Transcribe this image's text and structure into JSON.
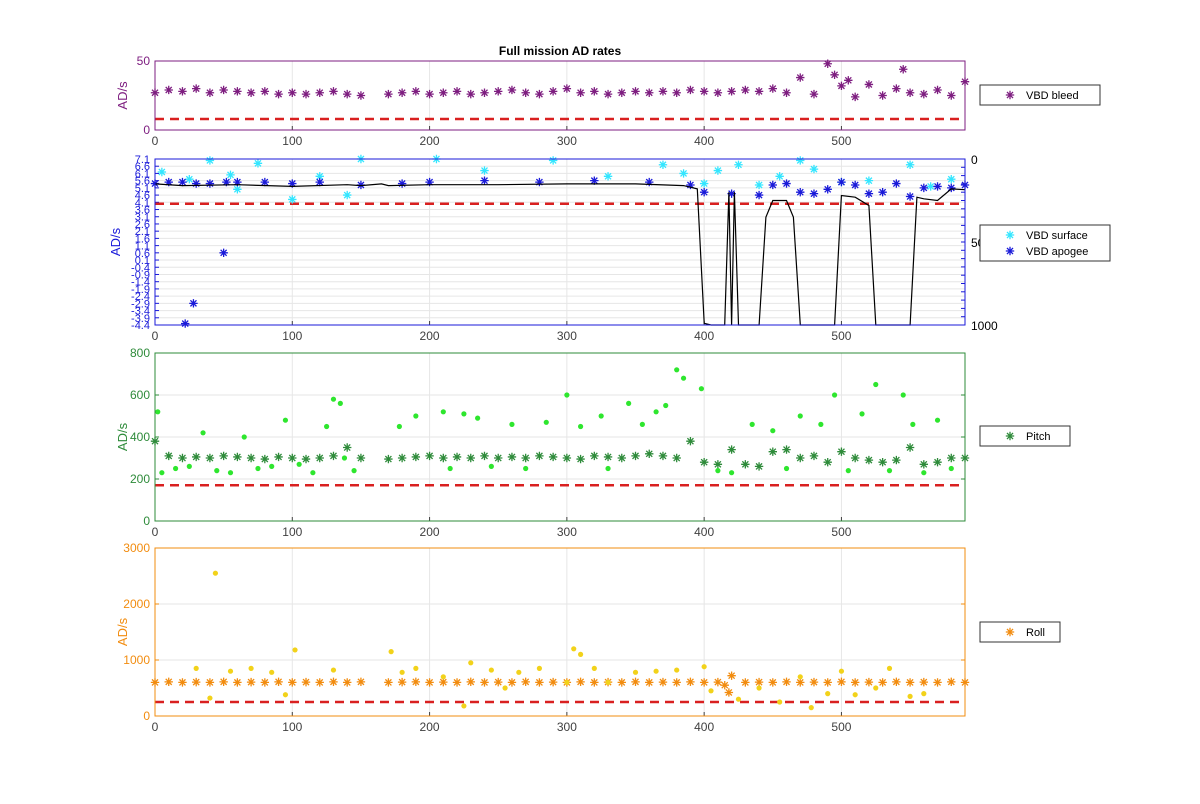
{
  "figure": {
    "title": "Full mission AD rates"
  },
  "colors": {
    "bleed": "#7E1E80",
    "surface": "#33E6FF",
    "apogee": "#1A1AD9",
    "depth": "#000000",
    "pitch_dark": "#2E8B3A",
    "pitch_light": "#2EE62E",
    "roll": "#F28C0F",
    "roll_light": "#F2D21A",
    "threshold": "#D92020",
    "grid": "#E6E6E6",
    "axis": "#404040"
  },
  "chart_data": [
    {
      "id": "bleed",
      "type": "scatter",
      "ylabel": "AD/s",
      "axis_color": "#7E1E80",
      "xlim": [
        0,
        590
      ],
      "ylim": [
        0,
        50
      ],
      "xticks": [
        0,
        100,
        200,
        300,
        400,
        500
      ],
      "yticks": [
        0,
        50
      ],
      "threshold": 8,
      "legend": {
        "placement": "right",
        "entries": [
          {
            "label": "VBD bleed",
            "color": "#7E1E80"
          }
        ]
      },
      "series": [
        {
          "name": "VBD bleed",
          "color": "#7E1E80",
          "marker": "star",
          "x": [
            0,
            10,
            20,
            30,
            40,
            50,
            60,
            70,
            80,
            90,
            100,
            110,
            120,
            130,
            140,
            150,
            170,
            180,
            190,
            200,
            210,
            220,
            230,
            240,
            250,
            260,
            270,
            280,
            290,
            300,
            310,
            320,
            330,
            340,
            350,
            360,
            370,
            380,
            390,
            400,
            410,
            420,
            430,
            440,
            450,
            460,
            470,
            480,
            490,
            495,
            500,
            505,
            510,
            520,
            530,
            540,
            545,
            550,
            560,
            570,
            580,
            590
          ],
          "y": [
            27,
            29,
            28,
            30,
            27,
            29,
            28,
            27,
            28,
            26,
            27,
            26,
            27,
            28,
            26,
            25,
            26,
            27,
            28,
            26,
            27,
            28,
            26,
            27,
            28,
            29,
            27,
            26,
            28,
            30,
            27,
            28,
            26,
            27,
            28,
            27,
            28,
            27,
            29,
            28,
            27,
            28,
            29,
            28,
            30,
            27,
            38,
            26,
            48,
            40,
            32,
            36,
            24,
            33,
            25,
            30,
            44,
            27,
            26,
            29,
            25,
            35
          ]
        }
      ]
    },
    {
      "id": "vbd",
      "type": "scatter",
      "ylabel": "AD/s",
      "axis_color": "#1A1AD9",
      "xlim": [
        0,
        590
      ],
      "ylim": [
        -4.4,
        7.1
      ],
      "xticks": [
        0,
        100,
        200,
        300,
        400,
        500
      ],
      "yticks": [
        -4.4,
        -3.9,
        -3.4,
        -2.9,
        -2.4,
        -1.9,
        -1.4,
        -0.9,
        -0.4,
        0.1,
        0.6,
        1.1,
        1.6,
        2.1,
        2.6,
        3.1,
        3.6,
        4.1,
        4.6,
        5.1,
        5.6,
        6.1,
        6.6,
        7.1
      ],
      "y2lim": [
        0,
        1000
      ],
      "y2ticks": [
        0,
        500,
        1000
      ],
      "threshold": 4.0,
      "legend": {
        "placement": "right",
        "entries": [
          {
            "label": "VBD surface",
            "color": "#33E6FF"
          },
          {
            "label": "VBD apogee",
            "color": "#1A1AD9"
          }
        ]
      },
      "series": [
        {
          "name": "VBD surface",
          "color": "#33E6FF",
          "marker": "star",
          "x": [
            5,
            25,
            40,
            55,
            60,
            75,
            100,
            120,
            140,
            150,
            205,
            240,
            290,
            330,
            370,
            385,
            400,
            410,
            425,
            440,
            455,
            470,
            480,
            500,
            520,
            550,
            565,
            580
          ],
          "y": [
            6.2,
            5.7,
            7.0,
            6.0,
            5.0,
            6.8,
            4.3,
            5.9,
            4.6,
            7.1,
            7.1,
            6.3,
            7.0,
            5.9,
            6.7,
            6.1,
            5.4,
            6.3,
            6.7,
            5.3,
            5.9,
            7.0,
            6.4,
            5.5,
            5.6,
            6.7,
            5.2,
            5.7
          ]
        },
        {
          "name": "VBD apogee",
          "color": "#1A1AD9",
          "marker": "star",
          "x": [
            0,
            10,
            20,
            22,
            28,
            30,
            40,
            50,
            52,
            60,
            80,
            100,
            120,
            150,
            180,
            200,
            240,
            280,
            320,
            360,
            390,
            400,
            420,
            440,
            450,
            460,
            470,
            480,
            490,
            500,
            510,
            520,
            530,
            540,
            550,
            560,
            570,
            580,
            590
          ],
          "y": [
            5.4,
            5.5,
            5.5,
            -4.3,
            -2.9,
            5.4,
            5.4,
            0.6,
            5.5,
            5.5,
            5.5,
            5.4,
            5.5,
            5.3,
            5.4,
            5.5,
            5.6,
            5.5,
            5.6,
            5.5,
            5.3,
            4.8,
            4.7,
            4.6,
            5.3,
            5.4,
            4.8,
            4.7,
            5.0,
            5.5,
            5.3,
            4.7,
            4.8,
            5.4,
            4.5,
            5.1,
            5.2,
            5.1,
            5.3
          ]
        },
        {
          "name": "",
          "color": "#000000",
          "marker": "line",
          "x": [
            0,
            20,
            60,
            100,
            140,
            150,
            165,
            170,
            200,
            250,
            300,
            350,
            385,
            395,
            400,
            405,
            415,
            418,
            420,
            422,
            425,
            430,
            440,
            445,
            450,
            460,
            465,
            470,
            480,
            495,
            500,
            510,
            520,
            525,
            530,
            540,
            550,
            555,
            560,
            570,
            580,
            590
          ],
          "y": [
            150,
            160,
            155,
            165,
            155,
            160,
            150,
            160,
            155,
            155,
            150,
            150,
            160,
            180,
            990,
            1000,
            1000,
            200,
            1000,
            200,
            1000,
            1000,
            1000,
            350,
            250,
            250,
            350,
            1000,
            1000,
            1000,
            220,
            230,
            280,
            1000,
            1000,
            1000,
            1000,
            230,
            240,
            250,
            180,
            185
          ]
        }
      ]
    },
    {
      "id": "pitch",
      "type": "scatter",
      "ylabel": "AD/s",
      "axis_color": "#2E8B3A",
      "xlim": [
        0,
        590
      ],
      "ylim": [
        0,
        800
      ],
      "xticks": [
        0,
        100,
        200,
        300,
        400,
        500
      ],
      "yticks": [
        0,
        200,
        400,
        600,
        800
      ],
      "threshold": 170,
      "legend": {
        "placement": "right",
        "entries": [
          {
            "label": "Pitch",
            "color": "#2E8B3A"
          }
        ]
      },
      "series": [
        {
          "name": "Pitch",
          "color": "#2E8B3A",
          "marker": "star",
          "x": [
            0,
            10,
            20,
            30,
            40,
            50,
            60,
            70,
            80,
            90,
            100,
            110,
            120,
            130,
            140,
            150,
            170,
            180,
            190,
            200,
            210,
            220,
            230,
            240,
            250,
            260,
            270,
            280,
            290,
            300,
            310,
            320,
            330,
            340,
            350,
            360,
            370,
            380,
            390,
            400,
            410,
            420,
            430,
            440,
            450,
            460,
            470,
            480,
            490,
            500,
            510,
            520,
            530,
            540,
            550,
            560,
            570,
            580,
            590
          ],
          "y": [
            380,
            310,
            300,
            305,
            300,
            310,
            305,
            300,
            295,
            305,
            300,
            295,
            300,
            310,
            350,
            300,
            295,
            300,
            305,
            310,
            300,
            305,
            300,
            310,
            300,
            305,
            300,
            310,
            305,
            300,
            295,
            310,
            305,
            300,
            310,
            320,
            310,
            300,
            380,
            280,
            270,
            340,
            270,
            260,
            330,
            340,
            300,
            310,
            280,
            330,
            300,
            290,
            280,
            290,
            350,
            270,
            280,
            300,
            300
          ]
        },
        {
          "name": "",
          "color": "#2EE62E",
          "marker": "dot",
          "x": [
            2,
            5,
            15,
            25,
            35,
            45,
            55,
            65,
            75,
            85,
            95,
            105,
            115,
            125,
            130,
            135,
            138,
            145,
            178,
            190,
            210,
            215,
            225,
            235,
            245,
            260,
            270,
            285,
            300,
            310,
            325,
            330,
            345,
            355,
            365,
            372,
            380,
            385,
            398,
            410,
            420,
            435,
            450,
            460,
            470,
            485,
            495,
            505,
            515,
            525,
            535,
            545,
            552,
            560,
            570,
            580
          ],
          "y": [
            520,
            230,
            250,
            260,
            420,
            240,
            230,
            400,
            250,
            260,
            480,
            270,
            230,
            450,
            580,
            560,
            300,
            240,
            450,
            500,
            520,
            250,
            510,
            490,
            260,
            460,
            250,
            470,
            600,
            450,
            500,
            250,
            560,
            460,
            520,
            550,
            720,
            680,
            630,
            240,
            230,
            460,
            430,
            250,
            500,
            460,
            600,
            240,
            510,
            650,
            240,
            600,
            460,
            230,
            480,
            250
          ]
        }
      ]
    },
    {
      "id": "roll",
      "type": "scatter",
      "ylabel": "AD/s",
      "axis_color": "#F28C0F",
      "xlim": [
        0,
        590
      ],
      "ylim": [
        0,
        3000
      ],
      "xticks": [
        0,
        100,
        200,
        300,
        400,
        500
      ],
      "yticks": [
        0,
        1000,
        2000,
        3000
      ],
      "threshold": 250,
      "legend": {
        "placement": "right",
        "entries": [
          {
            "label": "Roll",
            "color": "#F28C0F"
          }
        ]
      },
      "series": [
        {
          "name": "Roll",
          "color": "#F28C0F",
          "marker": "star",
          "x": [
            0,
            10,
            20,
            30,
            40,
            50,
            60,
            70,
            80,
            90,
            100,
            110,
            120,
            130,
            140,
            150,
            170,
            180,
            190,
            200,
            210,
            220,
            230,
            240,
            250,
            260,
            270,
            280,
            290,
            300,
            310,
            320,
            330,
            340,
            350,
            360,
            370,
            380,
            390,
            400,
            410,
            415,
            418,
            420,
            430,
            440,
            450,
            460,
            470,
            480,
            490,
            500,
            510,
            520,
            530,
            540,
            550,
            560,
            570,
            580,
            590
          ],
          "y": [
            600,
            610,
            600,
            605,
            600,
            610,
            600,
            605,
            600,
            610,
            600,
            605,
            600,
            610,
            600,
            610,
            600,
            605,
            610,
            600,
            605,
            600,
            610,
            600,
            605,
            600,
            610,
            600,
            605,
            600,
            610,
            600,
            605,
            600,
            610,
            600,
            605,
            600,
            610,
            600,
            605,
            550,
            420,
            720,
            600,
            605,
            600,
            610,
            600,
            605,
            600,
            610,
            600,
            605,
            600,
            610,
            600,
            605,
            600,
            610,
            600
          ]
        },
        {
          "name": "",
          "color": "#F2D21A",
          "marker": "dot",
          "x": [
            30,
            40,
            44,
            55,
            70,
            85,
            95,
            102,
            130,
            172,
            180,
            190,
            210,
            225,
            230,
            245,
            255,
            265,
            280,
            300,
            305,
            310,
            320,
            330,
            350,
            365,
            380,
            400,
            405,
            425,
            440,
            455,
            470,
            478,
            490,
            500,
            510,
            525,
            535,
            550,
            560
          ],
          "y": [
            850,
            320,
            2550,
            800,
            850,
            780,
            380,
            1180,
            820,
            1150,
            780,
            850,
            700,
            180,
            950,
            820,
            500,
            780,
            850,
            600,
            1200,
            1100,
            850,
            600,
            780,
            800,
            820,
            880,
            450,
            300,
            500,
            250,
            700,
            150,
            400,
            800,
            380,
            500,
            850,
            350,
            400
          ]
        }
      ]
    }
  ]
}
